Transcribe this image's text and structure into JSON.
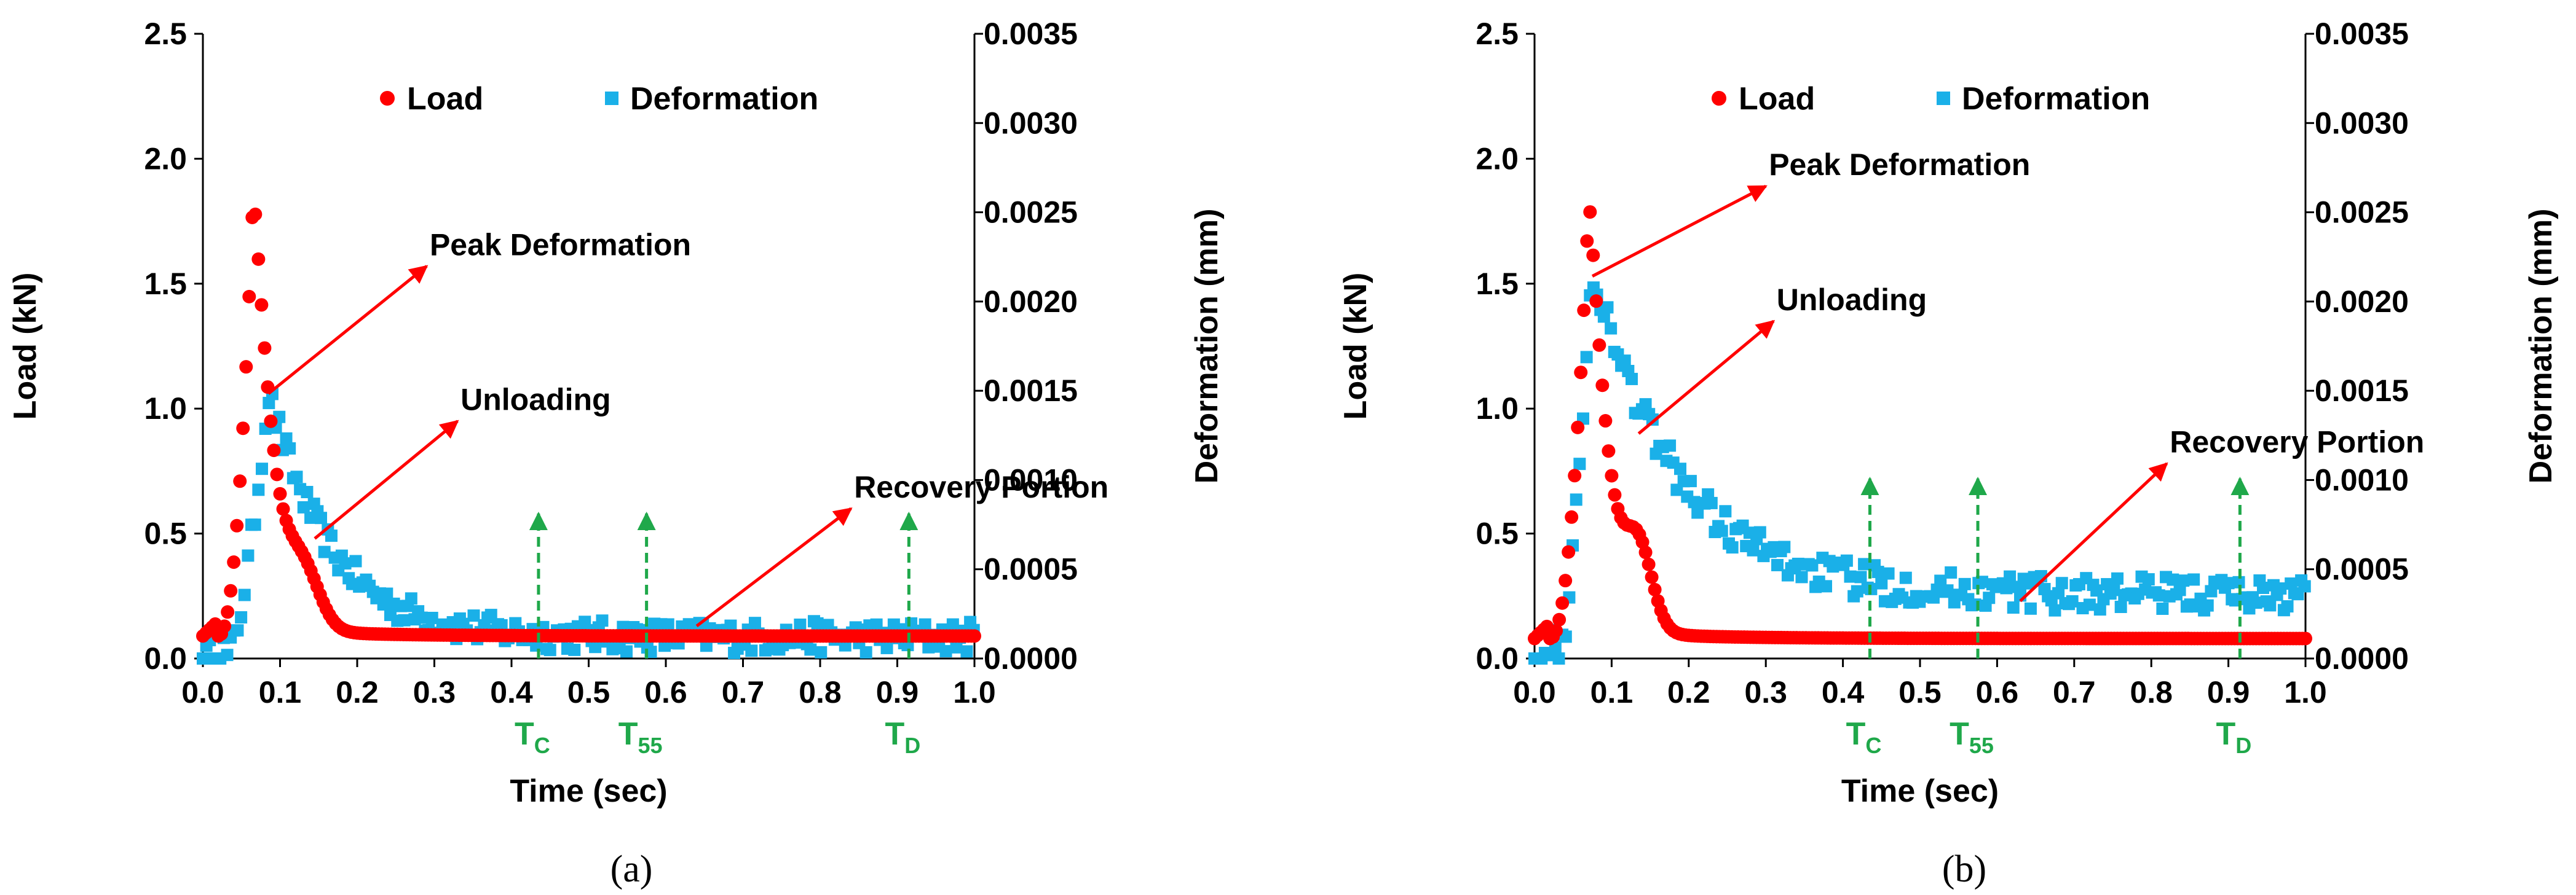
{
  "chart_data": [
    {
      "type": "scatter",
      "panel_label": "a",
      "xlabel": "Time (sec)",
      "ylabel_left": "Load (kN)",
      "ylabel_right": "Deformation (mm)",
      "xlim": [
        0,
        1
      ],
      "ylim_left": [
        0,
        2.5
      ],
      "ylim_right": [
        0,
        0.0035
      ],
      "x_ticks": [
        "0.0",
        "0.1",
        "0.2",
        "0.3",
        "0.4",
        "0.5",
        "0.6",
        "0.7",
        "0.8",
        "0.9",
        "1.0"
      ],
      "y_left_ticks": [
        "0.0",
        "0.5",
        "1.0",
        "1.5",
        "2.0",
        "2.5"
      ],
      "y_right_ticks": [
        "0.0000",
        "0.0005",
        "0.0010",
        "0.0015",
        "0.0020",
        "0.0025",
        "0.0030",
        "0.0035"
      ],
      "legend": {
        "position": "top",
        "load": "Load",
        "deformation": "Deformation"
      },
      "load_shape": {
        "base": 0.09,
        "peak": 1.85,
        "peak_time": 0.065,
        "rise_start": 0.02,
        "hump": 0.0,
        "tail_decay": 0.03
      },
      "deformation_shape": {
        "peak": 0.0015,
        "peak_time": 0.085,
        "plateau": 0.00012,
        "decay": 0.08,
        "noise": 9e-05
      },
      "annotations": [
        {
          "text": "Peak Deformation",
          "from": [
            0.085,
            1.06
          ],
          "to": [
            0.29,
            1.57
          ]
        },
        {
          "text": "Unloading",
          "from": [
            0.145,
            0.48
          ],
          "to": [
            0.33,
            0.95
          ]
        },
        {
          "text": "Recovery Portion",
          "from": [
            0.64,
            0.13
          ],
          "to": [
            0.84,
            0.6
          ]
        }
      ],
      "markers": [
        {
          "base": "T",
          "sub": "C",
          "x": 0.435,
          "y_top": 0.58
        },
        {
          "base": "T",
          "sub": "55",
          "x": 0.575,
          "y_top": 0.58
        },
        {
          "base": "T",
          "sub": "D",
          "x": 0.915,
          "y_top": 0.58
        }
      ]
    },
    {
      "type": "scatter",
      "panel_label": "b",
      "xlabel": "Time (sec)",
      "ylabel_left": "Load (kN)",
      "ylabel_right": "Deformation (mm)",
      "xlim": [
        0,
        1
      ],
      "ylim_left": [
        0,
        2.5
      ],
      "ylim_right": [
        0,
        0.0035
      ],
      "x_ticks": [
        "0.0",
        "0.1",
        "0.2",
        "0.3",
        "0.4",
        "0.5",
        "0.6",
        "0.7",
        "0.8",
        "0.9",
        "1.0"
      ],
      "y_left_ticks": [
        "0.0",
        "0.5",
        "1.0",
        "1.5",
        "2.0",
        "2.5"
      ],
      "y_right_ticks": [
        "0.0000",
        "0.0005",
        "0.0010",
        "0.0015",
        "0.0020",
        "0.0025",
        "0.0030",
        "0.0035"
      ],
      "legend": {
        "position": "top",
        "load": "Load",
        "deformation": "Deformation"
      },
      "load_shape": {
        "base": 0.08,
        "peak": 1.82,
        "peak_time": 0.07,
        "rise_start": 0.02,
        "hump": 0.42,
        "tail_decay": 0.03
      },
      "deformation_shape": {
        "peak": 0.0022,
        "peak_time": 0.075,
        "plateau": 0.00036,
        "decay": 0.11,
        "noise": 0.0001
      },
      "annotations": [
        {
          "text": "Peak Deformation",
          "from": [
            0.075,
            1.53
          ],
          "to": [
            0.3,
            1.89
          ]
        },
        {
          "text": "Unloading",
          "from": [
            0.135,
            0.9
          ],
          "to": [
            0.31,
            1.35
          ]
        },
        {
          "text": "Recovery Portion",
          "from": [
            0.63,
            0.23
          ],
          "to": [
            0.82,
            0.78
          ]
        }
      ],
      "markers": [
        {
          "base": "T",
          "sub": "C",
          "x": 0.435,
          "y_top": 0.72
        },
        {
          "base": "T",
          "sub": "55",
          "x": 0.575,
          "y_top": 0.72
        },
        {
          "base": "T",
          "sub": "D",
          "x": 0.915,
          "y_top": 0.72
        }
      ]
    }
  ],
  "captions": [
    "(a)",
    "(b)"
  ],
  "colors": {
    "load": "#ff0000",
    "deformation": "#1ab0e8",
    "marker": "#1fa84a",
    "arrow": "#ff0000"
  }
}
